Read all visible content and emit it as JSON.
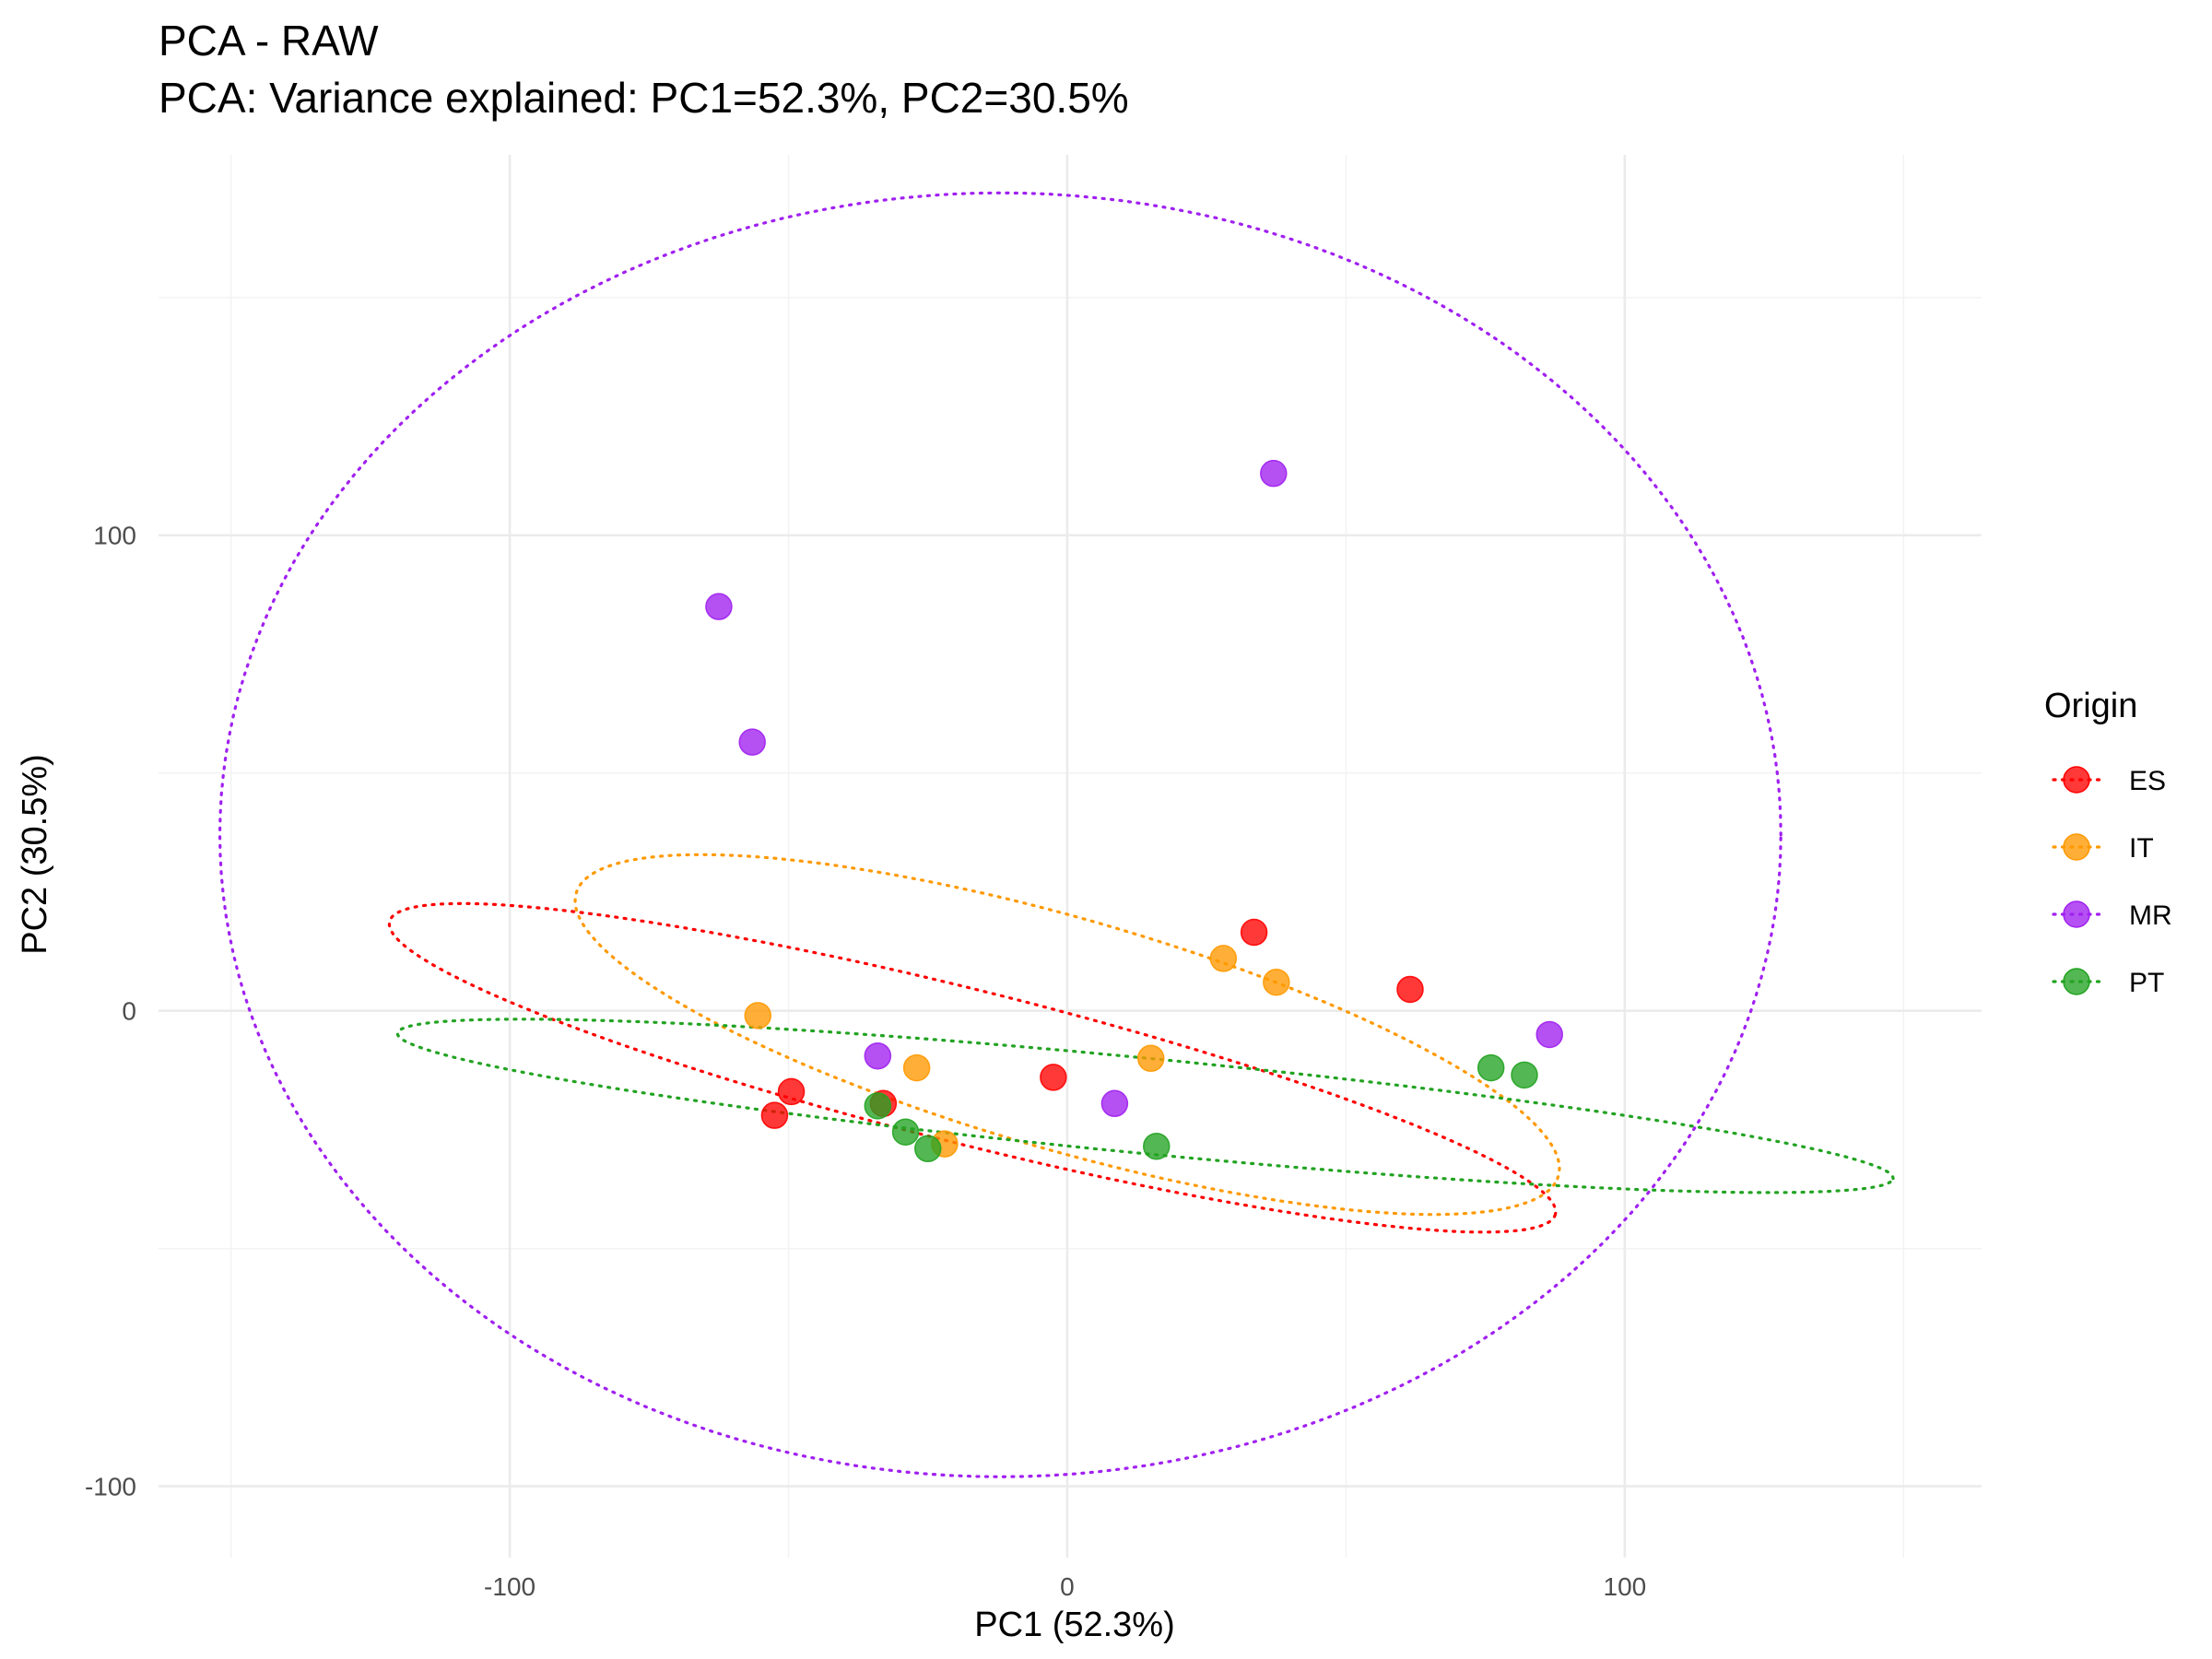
{
  "chart_data": {
    "type": "scatter",
    "title": "PCA - RAW",
    "subtitle": "PCA: Variance explained: PC1=52.3%, PC2=30.5%",
    "xlabel": "PC1 (52.3%)",
    "ylabel": "PC2 (30.5%)",
    "xlim": [
      -163,
      164
    ],
    "ylim": [
      -115,
      180
    ],
    "x_ticks": [
      -100,
      0,
      100
    ],
    "x_tick_labels": [
      "-100",
      "0",
      "100"
    ],
    "y_ticks": [
      -100,
      0,
      100
    ],
    "y_tick_labels": [
      "-100",
      "0",
      "100"
    ],
    "x_minor_ticks": [
      -150,
      -50,
      50,
      150
    ],
    "y_minor_ticks": [
      -50,
      50,
      150
    ],
    "grid": true,
    "legend": {
      "title": "Origin",
      "position": "right"
    },
    "series": [
      {
        "name": "ES",
        "color": "#ff0000",
        "points": [
          {
            "x": -49.5,
            "y": -17
          },
          {
            "x": -52.5,
            "y": -22
          },
          {
            "x": -33,
            "y": -19.5
          },
          {
            "x": -2.5,
            "y": -14
          },
          {
            "x": 33.5,
            "y": 16.5
          },
          {
            "x": 61.5,
            "y": 4.5
          }
        ],
        "ellipse": {
          "cx": -17,
          "cy": -12,
          "rx": 109,
          "ry": 16,
          "angle_deg": -16.5
        }
      },
      {
        "name": "IT",
        "color": "#ff9900",
        "points": [
          {
            "x": -55.5,
            "y": -1
          },
          {
            "x": -27,
            "y": -12
          },
          {
            "x": -22,
            "y": -28
          },
          {
            "x": 15,
            "y": -10
          },
          {
            "x": 28,
            "y": 11
          },
          {
            "x": 37.5,
            "y": 6
          }
        ],
        "ellipse": {
          "cx": 0,
          "cy": -5,
          "rx": 93,
          "ry": 24,
          "angle_deg": -19
        }
      },
      {
        "name": "MR",
        "color": "#a020f0",
        "points": [
          {
            "x": -62.5,
            "y": 85
          },
          {
            "x": -56.5,
            "y": 56.5
          },
          {
            "x": -34,
            "y": -9.5
          },
          {
            "x": 8.5,
            "y": -19.5
          },
          {
            "x": 37,
            "y": 113
          },
          {
            "x": 86.5,
            "y": -5
          }
        ],
        "ellipse": {
          "cx": -12,
          "cy": 37,
          "rx": 140,
          "ry": 135,
          "angle_deg": 0
        }
      },
      {
        "name": "PT",
        "color": "#22a322",
        "points": [
          {
            "x": -34,
            "y": -20
          },
          {
            "x": -29,
            "y": -25.5
          },
          {
            "x": -25,
            "y": -29
          },
          {
            "x": 16,
            "y": -28.5
          },
          {
            "x": 76,
            "y": -12
          },
          {
            "x": 82,
            "y": -13.5
          }
        ],
        "ellipse": {
          "cx": 14,
          "cy": -20,
          "rx": 135,
          "ry": 10,
          "angle_deg": -6.5
        }
      }
    ]
  }
}
